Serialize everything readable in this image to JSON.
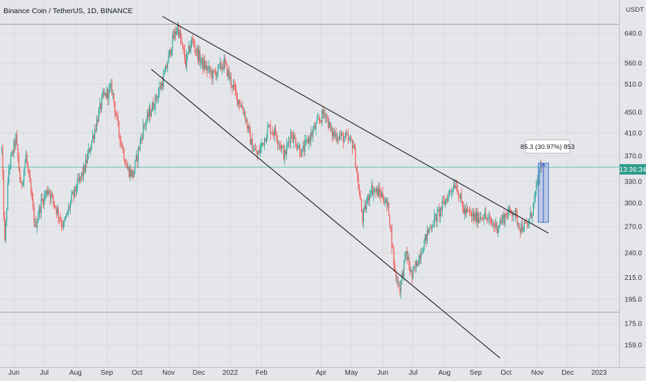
{
  "chart_data": {
    "type": "candlestick",
    "title": "Binance Coin / TetherUS, 1D, BINANCE",
    "currency": "USDT",
    "x_ticks": [
      "Jun",
      "Jul",
      "Aug",
      "Sep",
      "Oct",
      "Nov",
      "Dec",
      "2022",
      "Feb",
      "Apr",
      "May",
      "Jun",
      "Jul",
      "Aug",
      "Sep",
      "Oct",
      "Nov",
      "Dec",
      "2023"
    ],
    "y_ticks": [
      "640.0",
      "560.0",
      "510.0",
      "450.0",
      "410.0",
      "370.0",
      "330.0",
      "300.0",
      "270.0",
      "240.0",
      "215.0",
      "195.0",
      "175.0",
      "159.0"
    ],
    "y_scale": "log",
    "ylim": [
      150,
      720
    ],
    "price_label": "13:36:34",
    "measure_label": "85.3 (30.97%) 853",
    "series": [
      {
        "kind": "ohlc-daily",
        "start": "2021-05-20",
        "end": "2022-11-05",
        "anchors": [
          [
            "2021-05-20",
            380
          ],
          [
            "2021-05-23",
            250
          ],
          [
            "2021-05-27",
            350
          ],
          [
            "2021-06-03",
            400
          ],
          [
            "2021-06-08",
            320
          ],
          [
            "2021-06-13",
            370
          ],
          [
            "2021-06-22",
            270
          ],
          [
            "2021-06-28",
            300
          ],
          [
            "2021-07-05",
            320
          ],
          [
            "2021-07-20",
            270
          ],
          [
            "2021-07-28",
            305
          ],
          [
            "2021-08-10",
            350
          ],
          [
            "2021-08-28",
            480
          ],
          [
            "2021-09-06",
            500
          ],
          [
            "2021-09-12",
            420
          ],
          [
            "2021-09-21",
            350
          ],
          [
            "2021-09-27",
            340
          ],
          [
            "2021-10-07",
            420
          ],
          [
            "2021-10-20",
            480
          ],
          [
            "2021-10-28",
            530
          ],
          [
            "2021-11-05",
            620
          ],
          [
            "2021-11-10",
            660
          ],
          [
            "2021-11-18",
            560
          ],
          [
            "2021-11-24",
            620
          ],
          [
            "2021-12-04",
            560
          ],
          [
            "2021-12-15",
            530
          ],
          [
            "2021-12-26",
            560
          ],
          [
            "2022-01-08",
            480
          ],
          [
            "2022-01-15",
            450
          ],
          [
            "2022-01-22",
            390
          ],
          [
            "2022-01-28",
            370
          ],
          [
            "2022-02-08",
            420
          ],
          [
            "2022-02-15",
            410
          ],
          [
            "2022-02-24",
            370
          ],
          [
            "2022-03-02",
            410
          ],
          [
            "2022-03-13",
            375
          ],
          [
            "2022-03-20",
            400
          ],
          [
            "2022-04-01",
            440
          ],
          [
            "2022-04-05",
            450
          ],
          [
            "2022-04-11",
            410
          ],
          [
            "2022-04-18",
            405
          ],
          [
            "2022-04-25",
            400
          ],
          [
            "2022-05-03",
            390
          ],
          [
            "2022-05-09",
            310
          ],
          [
            "2022-05-12",
            280
          ],
          [
            "2022-05-20",
            320
          ],
          [
            "2022-06-01",
            310
          ],
          [
            "2022-06-07",
            290
          ],
          [
            "2022-06-13",
            220
          ],
          [
            "2022-06-18",
            205
          ],
          [
            "2022-06-24",
            240
          ],
          [
            "2022-06-30",
            215
          ],
          [
            "2022-07-08",
            240
          ],
          [
            "2022-07-18",
            270
          ],
          [
            "2022-07-28",
            290
          ],
          [
            "2022-08-08",
            320
          ],
          [
            "2022-08-12",
            330
          ],
          [
            "2022-08-20",
            290
          ],
          [
            "2022-09-01",
            280
          ],
          [
            "2022-09-08",
            285
          ],
          [
            "2022-09-15",
            275
          ],
          [
            "2022-09-22",
            270
          ],
          [
            "2022-10-01",
            285
          ],
          [
            "2022-10-08",
            290
          ],
          [
            "2022-10-15",
            270
          ],
          [
            "2022-10-22",
            270
          ],
          [
            "2022-10-27",
            290
          ],
          [
            "2022-10-31",
            320
          ],
          [
            "2022-11-05",
            355
          ]
        ]
      },
      {
        "kind": "trendline",
        "name": "upper",
        "p1": [
          "2021-10-26",
          690
        ],
        "p2": [
          "2022-11-12",
          262
        ]
      },
      {
        "kind": "trendline",
        "name": "lower",
        "p1": [
          "2021-10-15",
          545
        ],
        "p2": [
          "2022-09-25",
          150
        ]
      },
      {
        "kind": "level",
        "value": 666
      },
      {
        "kind": "level",
        "value": 184
      },
      {
        "kind": "level",
        "value": 352
      },
      {
        "kind": "measure",
        "from": [
          "2022-11-02",
          275
        ],
        "to": [
          "2022-11-12",
          358
        ]
      }
    ]
  }
}
